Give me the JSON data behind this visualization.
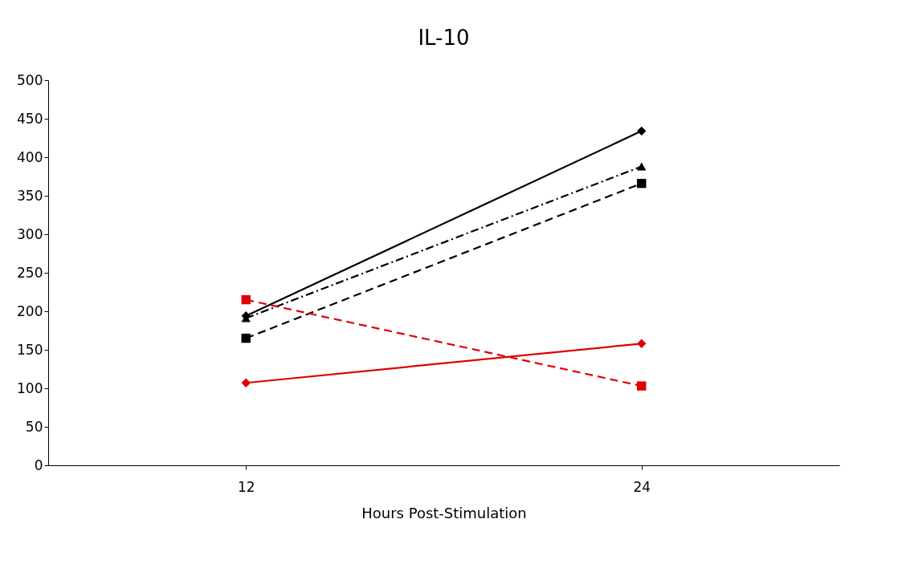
{
  "chart_data": {
    "type": "line",
    "title": "IL-10",
    "xlabel": "Hours Post-Stimulation",
    "categories": [
      "12",
      "24"
    ],
    "series": [
      {
        "color": "#000000",
        "values": [
          194,
          434
        ],
        "marker": "diamond",
        "line_style": "solid"
      },
      {
        "color": "#000000",
        "values": [
          191,
          388
        ],
        "marker": "triangle",
        "line_style": "dashdot"
      },
      {
        "color": "#000000",
        "values": [
          165,
          366
        ],
        "marker": "square",
        "line_style": "dashed"
      },
      {
        "color": "#e00000",
        "values": [
          215,
          103
        ],
        "marker": "square",
        "line_style": "dashed"
      },
      {
        "color": "#e00000",
        "values": [
          107,
          158
        ],
        "marker": "diamond",
        "line_style": "solid"
      }
    ],
    "ylim": [
      0,
      500
    ],
    "yticks": [
      0,
      50,
      100,
      150,
      200,
      250,
      300,
      350,
      400,
      450,
      500
    ],
    "grid": false
  }
}
